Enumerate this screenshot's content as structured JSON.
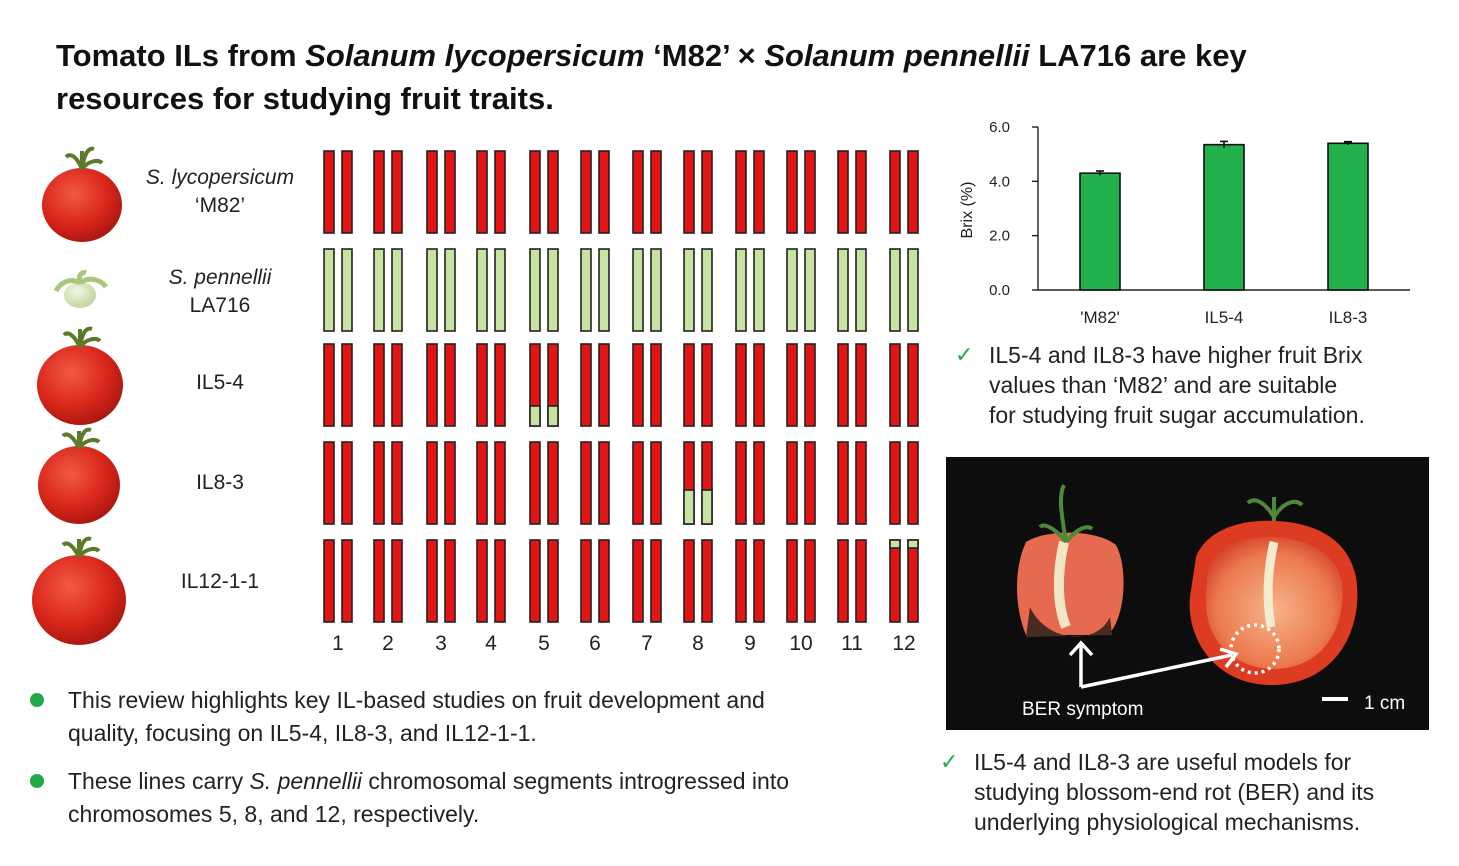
{
  "title": {
    "p1": "Tomato ILs from ",
    "p2": "Solanum lycopersicum",
    "p3": " ‘M82’ × ",
    "p4": "Solanum pennellii",
    "p5": " LA716 are key",
    "p6": "resources for studying fruit traits."
  },
  "lines": [
    {
      "name_italic": "S. lycopersicum",
      "name": "‘M82’",
      "colors": "red"
    },
    {
      "name_italic": "S. pennellii",
      "name": "LA716",
      "colors": "green"
    },
    {
      "name_italic": "",
      "name": "IL5-4",
      "colors": "red"
    },
    {
      "name_italic": "",
      "name": "IL8-3",
      "colors": "red"
    },
    {
      "name_italic": "",
      "name": "IL12-1-1",
      "colors": "red"
    }
  ],
  "introgressions": [
    {
      "line": "IL5-4",
      "chromosome": 5,
      "position": "bottom"
    },
    {
      "line": "IL8-3",
      "chromosome": 8,
      "position": "bottom"
    },
    {
      "line": "IL12-1-1",
      "chromosome": 12,
      "position": "top"
    }
  ],
  "chromosome_numbers": [
    "1",
    "2",
    "3",
    "4",
    "5",
    "6",
    "7",
    "8",
    "9",
    "10",
    "11",
    "12"
  ],
  "colors": {
    "m82_red": "#e31414",
    "pennellii_green": "#c6e3a3",
    "accent_green": "#22aa4a",
    "bar_green": "#22b14c"
  },
  "bullets": [
    {
      "text_pre": "This review highlights key IL-based studies on fruit development and",
      "text_line2": "quality, focusing on IL5-4, IL8-3, and IL12-1-1.",
      "italic": ""
    },
    {
      "text_pre": "These lines carry ",
      "italic": "S. pennellii",
      "text_post": " chromosomal segments introgressed into",
      "text_line2": "chromosomes 5, 8, and 12, respectively."
    }
  ],
  "chart_data": {
    "type": "bar",
    "categories": [
      "'M82'",
      "IL5-4",
      "IL8-3"
    ],
    "values": [
      4.3,
      5.35,
      5.4
    ],
    "errors": [
      0.08,
      0.12,
      0.06
    ],
    "ylabel": "Brix  (%)",
    "ylim": [
      0,
      6
    ],
    "yticks": [
      "0.0",
      "2.0",
      "4.0",
      "6.0"
    ],
    "grid": false
  },
  "brix_note": {
    "line1": "IL5-4 and IL8-3 have higher fruit Brix",
    "line2": "values than ‘M82’ and are suitable",
    "line3": "for studying fruit sugar accumulation."
  },
  "photo": {
    "ber_label": "BER symptom",
    "scale_label": "1 cm"
  },
  "ber_note": {
    "line1": "IL5-4 and IL8-3 are useful models for",
    "line2": "studying blossom-end rot (BER) and its",
    "line3": "underlying physiological mechanisms."
  }
}
